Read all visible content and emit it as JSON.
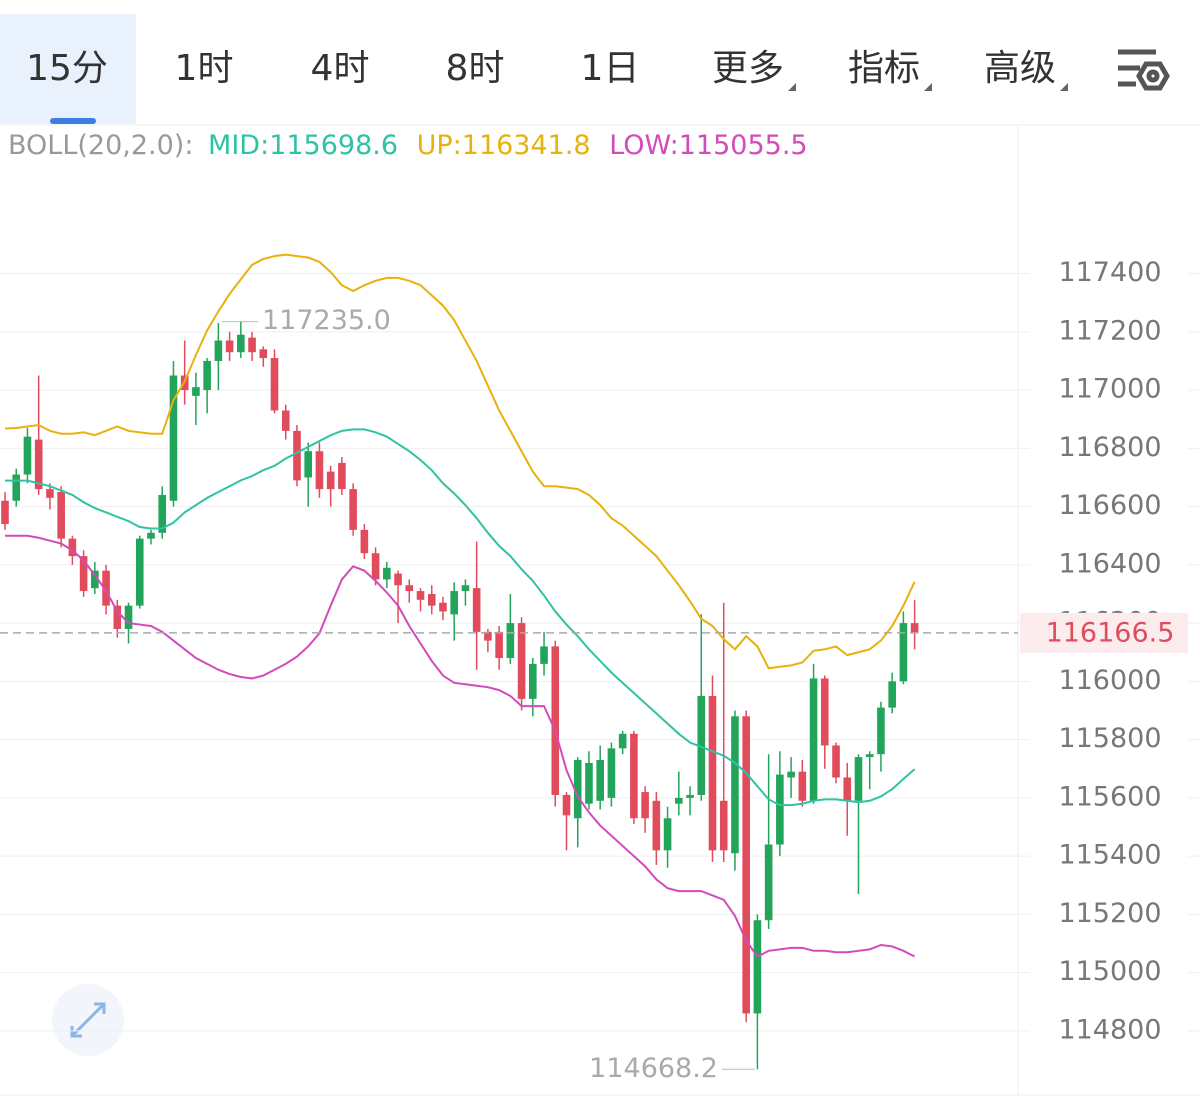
{
  "tabs": [
    "15分",
    "1时",
    "4时",
    "8时",
    "1日",
    "更多",
    "指标",
    "高级"
  ],
  "active_tab": 0,
  "chart_data": {
    "type": "candlestick",
    "legend_title": "BOLL(20,2.0):",
    "up_color": "#22a45a",
    "down_color": "#e14c5c",
    "ylim": [
      114580,
      117910
    ],
    "yticks": [
      114800,
      115000,
      115200,
      115400,
      115600,
      115800,
      116000,
      116200,
      116400,
      116600,
      116800,
      117000,
      117200,
      117400
    ],
    "grid": true,
    "last_price": 116166.5,
    "max": {
      "value": 117235,
      "label": "117235.0"
    },
    "min": 114668.2,
    "open": [
      116620,
      116620,
      116710,
      116830,
      116660,
      116650,
      116490,
      116430,
      116320,
      116380,
      116260,
      116180,
      116260,
      116490,
      116510,
      116620,
      117050,
      116980,
      117000,
      117100,
      117170,
      117130,
      117180,
      117140,
      117110,
      116930,
      116860,
      116700,
      116790,
      116720,
      116750,
      116660,
      116520,
      116440,
      116350,
      116370,
      116330,
      116310,
      116300,
      116270,
      116230,
      116310,
      116320,
      116170,
      116170,
      116080,
      116200,
      115940,
      116060,
      116120,
      115610,
      115530,
      115580,
      115590,
      115600,
      115770,
      115820,
      115620,
      115590,
      115420,
      115580,
      115600,
      115610,
      115950,
      115590,
      115410,
      115880,
      114860,
      115180,
      115440,
      115670,
      115690,
      115590,
      116010,
      115780,
      115670,
      115590,
      115740,
      115750,
      115910,
      116000,
      116200
    ],
    "high": [
      116650,
      116730,
      116870,
      117050,
      116680,
      116670,
      116500,
      116450,
      116410,
      116400,
      116280,
      116270,
      116500,
      116520,
      116670,
      117100,
      117170,
      117060,
      117110,
      117230,
      117200,
      117235,
      117200,
      117150,
      117140,
      116950,
      116880,
      116820,
      116820,
      116740,
      116770,
      116680,
      116540,
      116460,
      116410,
      116380,
      116350,
      116320,
      116330,
      116290,
      116340,
      116350,
      116480,
      116180,
      116190,
      116300,
      116220,
      116080,
      116170,
      116140,
      115620,
      115740,
      115760,
      115780,
      115790,
      115830,
      115830,
      115640,
      115620,
      115570,
      115690,
      115640,
      116230,
      116020,
      116270,
      115900,
      115900,
      115200,
      115750,
      115760,
      115740,
      115730,
      116060,
      116020,
      115790,
      115720,
      115750,
      115760,
      115930,
      116030,
      116240,
      116280
    ],
    "low": [
      116520,
      116600,
      116680,
      116640,
      116590,
      116460,
      116400,
      116290,
      116300,
      116230,
      116150,
      116130,
      116250,
      116470,
      116490,
      116600,
      116950,
      116880,
      116920,
      117000,
      117100,
      117110,
      117100,
      117080,
      116920,
      116830,
      116670,
      116600,
      116630,
      116600,
      116640,
      116500,
      116420,
      116330,
      116320,
      116200,
      116270,
      116240,
      116230,
      116210,
      116140,
      116260,
      116040,
      116100,
      116040,
      116060,
      115900,
      115880,
      116020,
      115570,
      115420,
      115430,
      115560,
      115560,
      115570,
      115750,
      115510,
      115480,
      115370,
      115360,
      115540,
      115540,
      115590,
      115380,
      115380,
      115350,
      114830,
      114668.2,
      115150,
      115400,
      115600,
      115570,
      115580,
      115700,
      115650,
      115470,
      115270,
      115630,
      115690,
      115890,
      115990,
      116110
    ],
    "close": [
      116540,
      116710,
      116840,
      116660,
      116630,
      116490,
      116430,
      116310,
      116380,
      116260,
      116180,
      116260,
      116490,
      116510,
      116640,
      117050,
      117000,
      117010,
      117100,
      117170,
      117130,
      117190,
      117130,
      117110,
      116930,
      116860,
      116690,
      116790,
      116660,
      116660,
      116660,
      116520,
      116440,
      116350,
      116390,
      116330,
      116310,
      116280,
      116260,
      116240,
      116310,
      116330,
      116170,
      116140,
      116080,
      116200,
      115940,
      116060,
      116120,
      115610,
      115540,
      115730,
      115720,
      115730,
      115770,
      115820,
      115530,
      115530,
      115420,
      115530,
      115600,
      115610,
      115950,
      115420,
      115420,
      115880,
      114860,
      115180,
      115440,
      115680,
      115690,
      115590,
      116010,
      115780,
      115670,
      115590,
      115740,
      115750,
      115910,
      116000,
      116200,
      116166.5
    ],
    "series": [
      {
        "name": "MID:",
        "color": "#2fc2a5",
        "values": [
          116689,
          116689,
          116689,
          116680,
          116670,
          116655,
          116640,
          116615,
          116595,
          116580,
          116565,
          116550,
          116530,
          116525,
          116525,
          116545,
          116580,
          116605,
          116630,
          116650,
          116670,
          116690,
          116705,
          116725,
          116740,
          116765,
          116785,
          116805,
          116825,
          116845,
          116860,
          116865,
          116865,
          116855,
          116840,
          116815,
          116790,
          116760,
          116725,
          116680,
          116645,
          116605,
          116560,
          116510,
          116465,
          116430,
          116385,
          116345,
          116295,
          116240,
          116195,
          116155,
          116110,
          116070,
          116030,
          115995,
          115960,
          115925,
          115890,
          115855,
          115820,
          115790,
          115775,
          115760,
          115745,
          115720,
          115685,
          115640,
          115595,
          115575,
          115575,
          115580,
          115590,
          115595,
          115595,
          115590,
          115585,
          115590,
          115605,
          115630,
          115665,
          115698.6
        ]
      },
      {
        "name": "UP:",
        "color": "#e8b10b",
        "values": [
          116868,
          116870,
          116875,
          116880,
          116860,
          116850,
          116850,
          116855,
          116845,
          116860,
          116875,
          116860,
          116855,
          116850,
          116850,
          116965,
          117030,
          117120,
          117205,
          117270,
          117330,
          117380,
          117430,
          117450,
          117460,
          117465,
          117460,
          117455,
          117440,
          117405,
          117360,
          117340,
          117360,
          117375,
          117385,
          117385,
          117375,
          117360,
          117325,
          117290,
          117240,
          117170,
          117100,
          117015,
          116930,
          116860,
          116790,
          116720,
          116670,
          116670,
          116665,
          116660,
          116640,
          116605,
          116560,
          116535,
          116500,
          116465,
          116430,
          116380,
          116330,
          116275,
          116215,
          116190,
          116145,
          116110,
          116155,
          116120,
          116045,
          116050,
          116055,
          116065,
          116105,
          116110,
          116120,
          116090,
          116100,
          116110,
          116140,
          116190,
          116260,
          116341.8
        ]
      },
      {
        "name": "LOW:",
        "color": "#d24bbb",
        "values": [
          116500,
          116500,
          116500,
          116493,
          116483,
          116473,
          116450,
          116415,
          116365,
          116310,
          116240,
          116200,
          116195,
          116190,
          116170,
          116140,
          116110,
          116080,
          116060,
          116040,
          116025,
          116015,
          116010,
          116020,
          116040,
          116060,
          116085,
          116120,
          116165,
          116260,
          116350,
          116395,
          116380,
          116345,
          116305,
          116260,
          116190,
          116130,
          116070,
          116020,
          115995,
          115990,
          115985,
          115980,
          115970,
          115950,
          115915,
          115915,
          115915,
          115830,
          115695,
          115605,
          115550,
          115505,
          115470,
          115435,
          115400,
          115365,
          115320,
          115290,
          115280,
          115280,
          115280,
          115265,
          115250,
          115195,
          115110,
          115055,
          115075,
          115080,
          115085,
          115085,
          115075,
          115075,
          115070,
          115070,
          115075,
          115080,
          115095,
          115090,
          115075,
          115055.5
        ]
      }
    ]
  }
}
